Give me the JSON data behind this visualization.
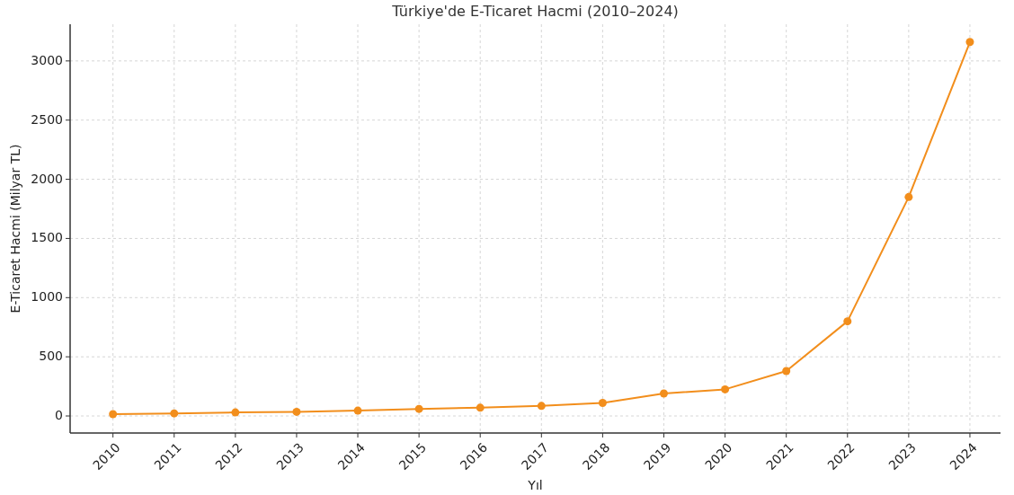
{
  "chart_data": {
    "type": "line",
    "title": "Türkiye'de E-Ticaret Hacmi (2010–2024)",
    "xlabel": "Yıl",
    "ylabel": "E-Ticaret Hacmi (Milyar TL)",
    "x": [
      2010,
      2011,
      2012,
      2013,
      2014,
      2015,
      2016,
      2017,
      2018,
      2019,
      2020,
      2021,
      2022,
      2023,
      2024
    ],
    "series": [
      {
        "color": "#f28e1c",
        "values": [
          15,
          22,
          30,
          35,
          45,
          60,
          70,
          85,
          110,
          190,
          225,
          380,
          800,
          1850,
          3160
        ]
      }
    ],
    "xlim": [
      2009.3,
      2024.5
    ],
    "ylim": [
      -144,
      3310
    ],
    "xticks": [
      2010,
      2011,
      2012,
      2013,
      2014,
      2015,
      2016,
      2017,
      2018,
      2019,
      2020,
      2021,
      2022,
      2023,
      2024
    ],
    "yticks": [
      0,
      500,
      1000,
      1500,
      2000,
      2500,
      3000
    ],
    "grid": true,
    "marker": "circle",
    "line_style": "solid"
  }
}
